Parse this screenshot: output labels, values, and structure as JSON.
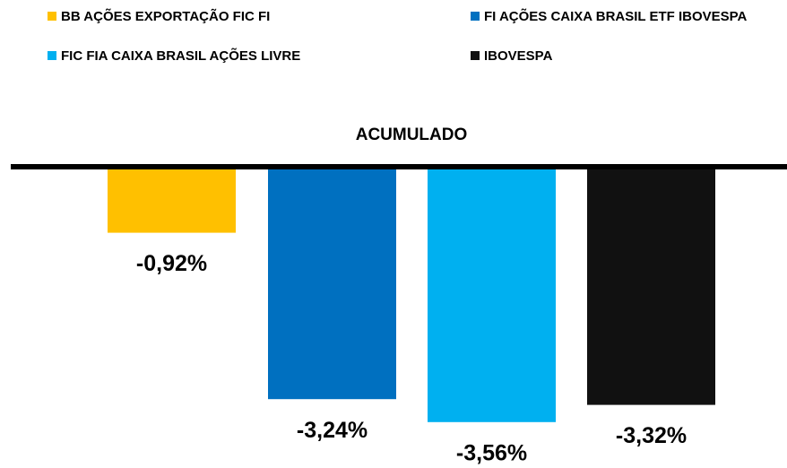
{
  "chart_data": {
    "type": "bar",
    "categories": [
      "ACUMULADO"
    ],
    "series": [
      {
        "name": "BB AÇÕES EXPORTAÇÃO FIC FI",
        "color": "#FFC000",
        "values": [
          -0.92
        ],
        "value_labels": [
          "-0,92%"
        ]
      },
      {
        "name": "FI AÇÕES CAIXA BRASIL ETF IBOVESPA",
        "color": "#0070C0",
        "values": [
          -3.24
        ],
        "value_labels": [
          "-3,24%"
        ]
      },
      {
        "name": "FIC FIA CAIXA BRASIL AÇÕES LIVRE",
        "color": "#00B0F0",
        "values": [
          -3.56
        ],
        "value_labels": [
          "-3,56%"
        ]
      },
      {
        "name": "IBOVESPA",
        "color": "#111111",
        "values": [
          -3.32
        ],
        "value_labels": [
          "-3,32%"
        ]
      }
    ],
    "legend": "top"
  }
}
